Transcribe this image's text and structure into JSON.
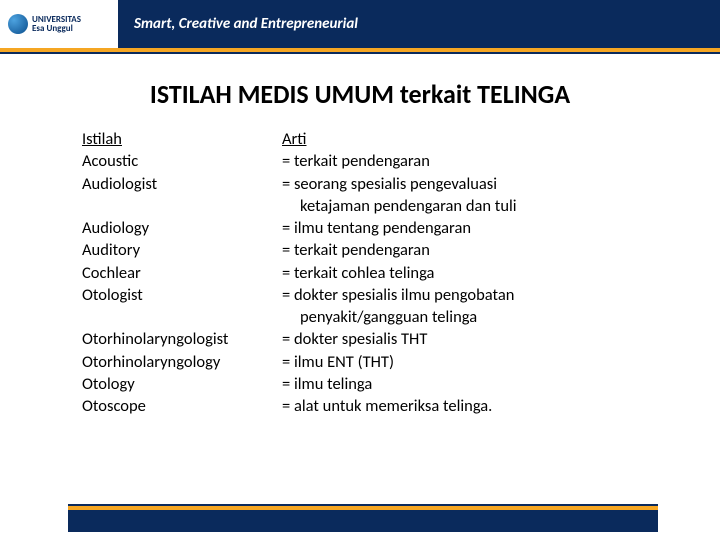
{
  "header": {
    "logo_uni": "UNIVERSITAS",
    "logo_name": "Esa Unggul",
    "tagline": "Smart, Creative and Entrepreneurial"
  },
  "title": "ISTILAH MEDIS UMUM terkait TELINGA",
  "col_headers": {
    "term": "Istilah",
    "meaning": "Arti"
  },
  "rows": [
    {
      "term": "Acoustic",
      "meaning": "= terkait pendengaran"
    },
    {
      "term": "Audiologist",
      "meaning": "= seorang spesialis pengevaluasi"
    },
    {
      "term": "",
      "meaning": "ketajaman pendengaran dan tuli",
      "indent": true
    },
    {
      "term": "Audiology",
      "meaning": "= ilmu tentang pendengaran"
    },
    {
      "term": "Auditory",
      "meaning": "= terkait pendengaran"
    },
    {
      "term": "Cochlear",
      "meaning": "= terkait cohlea telinga"
    },
    {
      "term": "Otologist",
      "meaning": "= dokter spesialis ilmu pengobatan"
    },
    {
      "term": "",
      "meaning": "penyakit/gangguan telinga",
      "indent": true
    },
    {
      "term": "Otorhinolaryngologist",
      "meaning": "= dokter spesialis THT"
    },
    {
      "term": "Otorhinolaryngology",
      "meaning": "= ilmu ENT (THT)"
    },
    {
      "term": "Otology",
      "meaning": "= ilmu telinga"
    },
    {
      "term": "Otoscope",
      "meaning": "= alat untuk memeriksa telinga."
    }
  ],
  "colors": {
    "header_bg": "#0a2a5c",
    "accent": "#f5a623"
  }
}
